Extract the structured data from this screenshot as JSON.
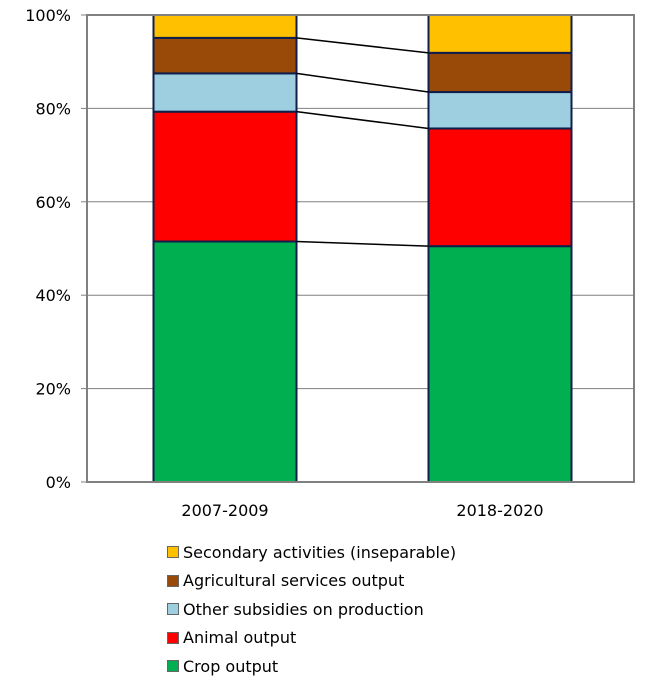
{
  "chart_data": {
    "type": "bar",
    "stacked": true,
    "percent": true,
    "categories": [
      "2007-2009",
      "2018-2020"
    ],
    "series": [
      {
        "name": "Crop output",
        "color": "#00B050",
        "values": [
          51.5,
          50.5
        ]
      },
      {
        "name": "Animal output",
        "color": "#FF0000",
        "values": [
          27.8,
          25.2
        ]
      },
      {
        "name": "Other subsidies on production",
        "color": "#9DCFE0",
        "values": [
          8.2,
          7.8
        ]
      },
      {
        "name": "Agricultural services output",
        "color": "#9A4A08",
        "values": [
          7.6,
          8.4
        ]
      },
      {
        "name": "Secondary activities (inseparable)",
        "color": "#FFC000",
        "values": [
          4.9,
          8.1
        ]
      }
    ],
    "y_ticks": [
      "0%",
      "20%",
      "40%",
      "60%",
      "80%",
      "100%"
    ],
    "ylim": [
      0,
      100
    ],
    "grid": true,
    "legend_position": "bottom",
    "series_lines": true
  }
}
